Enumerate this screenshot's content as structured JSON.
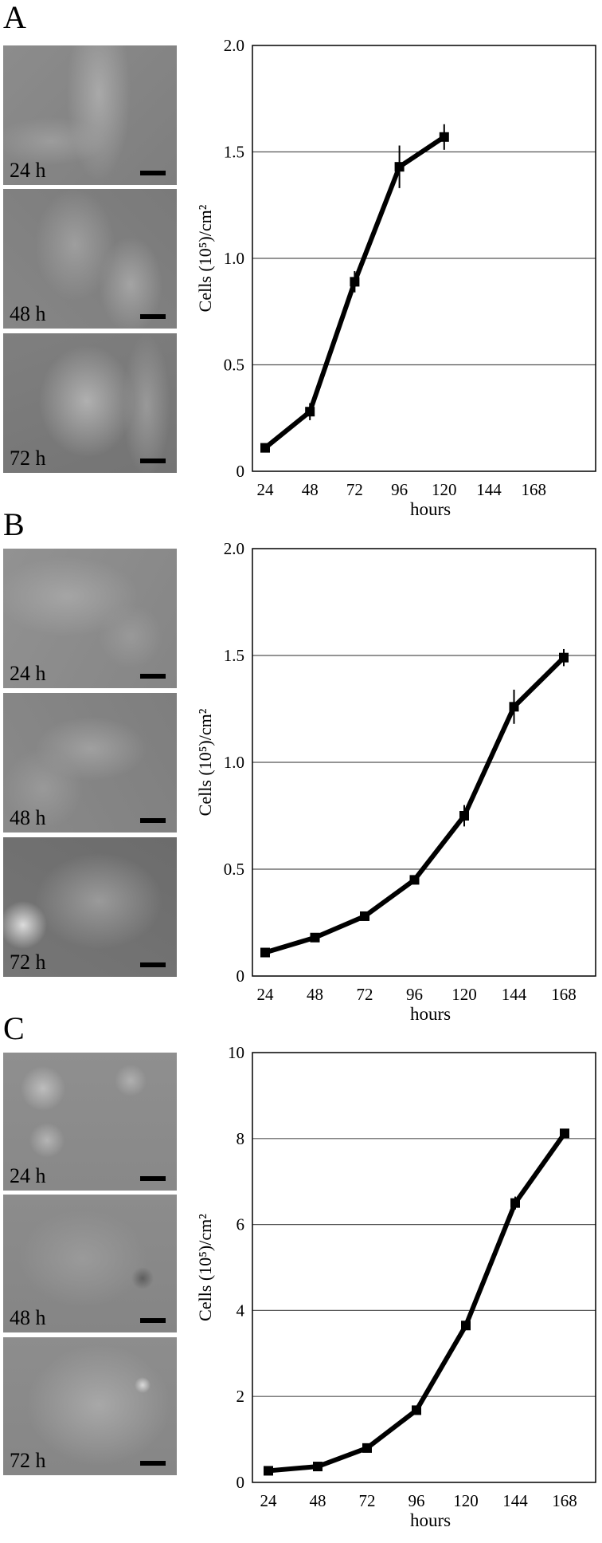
{
  "panels": [
    {
      "letter": "A",
      "time_labels": [
        "24 h",
        "48 h",
        "72 h"
      ]
    },
    {
      "letter": "B",
      "time_labels": [
        "24 h",
        "48 h",
        "72 h"
      ]
    },
    {
      "letter": "C",
      "time_labels": [
        "24 h",
        "48 h",
        "72 h"
      ]
    }
  ],
  "chart_data": [
    {
      "type": "line",
      "ylabel": "Cells (10⁵)/cm²",
      "xlabel": "hours",
      "categories": [
        "24",
        "48",
        "72",
        "96",
        "120",
        "144",
        "168"
      ],
      "x": [
        24,
        48,
        72,
        96,
        120
      ],
      "y": [
        0.11,
        0.28,
        0.89,
        1.43,
        1.57
      ],
      "err": [
        0.02,
        0.04,
        0.05,
        0.1,
        0.06
      ],
      "ylim": [
        0,
        2
      ],
      "yticks": [
        "0",
        "0.5",
        "1.0",
        "1.5",
        "2.0"
      ],
      "grid": true
    },
    {
      "type": "line",
      "ylabel": "Cells (10⁵)/cm²",
      "xlabel": "hours",
      "categories": [
        "24",
        "48",
        "72",
        "96",
        "120",
        "144",
        "168"
      ],
      "x": [
        24,
        48,
        72,
        96,
        120,
        144,
        168
      ],
      "y": [
        0.11,
        0.18,
        0.28,
        0.45,
        0.75,
        1.26,
        1.49
      ],
      "err": [
        0.01,
        0.01,
        0.01,
        0.02,
        0.05,
        0.08,
        0.04
      ],
      "ylim": [
        0,
        2
      ],
      "yticks": [
        "0",
        "0.5",
        "1.0",
        "1.5",
        "2.0"
      ],
      "grid": true
    },
    {
      "type": "line",
      "ylabel": "Cells (10⁵)/cm²",
      "xlabel": "hours",
      "categories": [
        "24",
        "48",
        "72",
        "96",
        "120",
        "144",
        "168"
      ],
      "x": [
        24,
        48,
        72,
        96,
        120,
        144,
        168
      ],
      "y": [
        0.27,
        0.37,
        0.8,
        1.68,
        3.65,
        6.5,
        8.12
      ],
      "err": [
        0.05,
        0.05,
        0.06,
        0.08,
        0.1,
        0.15,
        0.1
      ],
      "ylim": [
        0,
        10
      ],
      "yticks": [
        "0",
        "2",
        "4",
        "6",
        "8",
        "10"
      ],
      "grid": true
    }
  ]
}
